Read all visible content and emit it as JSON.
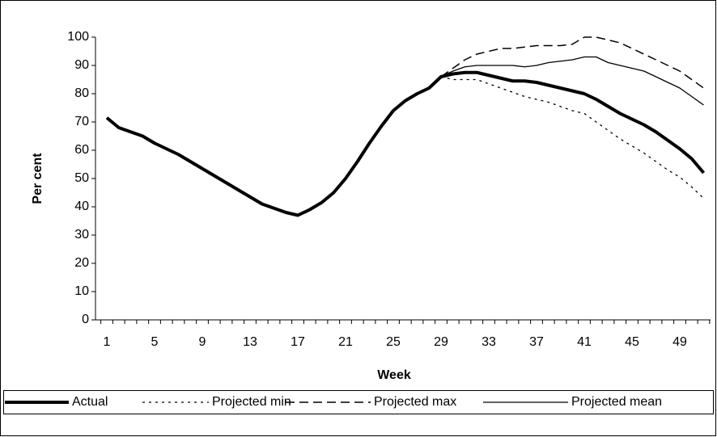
{
  "chart_data": {
    "type": "line",
    "xlabel": "Week",
    "ylabel": "Per cent",
    "categories": [
      1,
      null,
      null,
      null,
      5,
      null,
      null,
      null,
      9,
      null,
      null,
      null,
      13,
      null,
      null,
      null,
      17,
      null,
      null,
      null,
      21,
      null,
      null,
      null,
      25,
      null,
      null,
      null,
      29,
      null,
      null,
      null,
      33,
      null,
      null,
      null,
      37,
      null,
      null,
      null,
      41,
      null,
      null,
      null,
      45,
      null,
      null,
      null,
      49,
      null,
      null
    ],
    "ylim": [
      0,
      100
    ],
    "yticks": [
      0,
      10,
      20,
      30,
      40,
      50,
      60,
      70,
      80,
      90,
      100
    ],
    "grid": false,
    "legend": "bottom",
    "series": [
      {
        "name": "Actual",
        "color": "#000000",
        "values": [
          71.5,
          68,
          66.5,
          65,
          62.5,
          60.5,
          58.5,
          56,
          53.5,
          51,
          48.5,
          46,
          43.5,
          41,
          39.5,
          38,
          37,
          39,
          41.5,
          45,
          50,
          56,
          62.5,
          68.5,
          74,
          77.5,
          80,
          82,
          86,
          87,
          87.5,
          87.5,
          86.5,
          85.5,
          84.5,
          84.5,
          84,
          83,
          82,
          81,
          80,
          78,
          75.5,
          73,
          71,
          69,
          66.5,
          63.5,
          60.5,
          57,
          52
        ]
      },
      {
        "name": "Projected min",
        "color": "#000000",
        "values": [
          null,
          null,
          null,
          null,
          null,
          null,
          null,
          null,
          null,
          null,
          null,
          null,
          null,
          null,
          null,
          null,
          null,
          null,
          null,
          null,
          null,
          null,
          null,
          null,
          null,
          null,
          null,
          null,
          86,
          85,
          85,
          85,
          83.5,
          82,
          80.5,
          79,
          78,
          77,
          75.5,
          74,
          73,
          70,
          67,
          64,
          61.5,
          59,
          56,
          53,
          50.5,
          47,
          43
        ]
      },
      {
        "name": "Projected max",
        "color": "#000000",
        "values": [
          null,
          null,
          null,
          null,
          null,
          null,
          null,
          null,
          null,
          null,
          null,
          null,
          null,
          null,
          null,
          null,
          null,
          null,
          null,
          null,
          null,
          null,
          null,
          null,
          null,
          null,
          null,
          null,
          86,
          89,
          92,
          94,
          95,
          96,
          96,
          96.5,
          97,
          97,
          97,
          97.5,
          100,
          100,
          99,
          98,
          96,
          94,
          92,
          90,
          88,
          85,
          82
        ]
      },
      {
        "name": "Projected mean",
        "color": "#000000",
        "values": [
          null,
          null,
          null,
          null,
          null,
          null,
          null,
          null,
          null,
          null,
          null,
          null,
          null,
          null,
          null,
          null,
          null,
          null,
          null,
          null,
          null,
          null,
          null,
          null,
          null,
          null,
          null,
          null,
          86,
          88,
          89.5,
          90,
          90,
          90,
          90,
          89.5,
          90,
          91,
          91.5,
          92,
          93,
          93,
          91,
          90,
          89,
          88,
          86,
          84,
          82,
          79,
          76
        ]
      }
    ]
  }
}
